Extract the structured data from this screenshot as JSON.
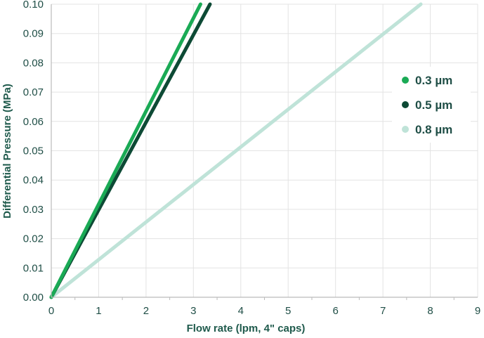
{
  "chart_data": {
    "type": "line",
    "xlabel": "Flow rate (lpm, 4\" caps)",
    "ylabel": "Differential Pressure (MPa)",
    "xlim": [
      0,
      9
    ],
    "ylim": [
      0,
      0.1
    ],
    "x_ticks": [
      "0",
      "1",
      "2",
      "3",
      "4",
      "5",
      "6",
      "7",
      "8",
      "9"
    ],
    "y_ticks": [
      "0.00",
      "0.01",
      "0.02",
      "0.03",
      "0.04",
      "0.05",
      "0.06",
      "0.07",
      "0.08",
      "0.09",
      "0.10"
    ],
    "grid": true,
    "legend_position": "right",
    "series": [
      {
        "name": "0.3 µm",
        "color": "#1aaa55",
        "points": [
          [
            0,
            0
          ],
          [
            3.15,
            0.1
          ]
        ]
      },
      {
        "name": "0.5 µm",
        "color": "#0d4a35",
        "points": [
          [
            0,
            0
          ],
          [
            3.35,
            0.1
          ]
        ]
      },
      {
        "name": "0.8 µm",
        "color": "#bfe3d8",
        "points": [
          [
            0,
            0
          ],
          [
            7.8,
            0.1
          ]
        ]
      }
    ]
  }
}
